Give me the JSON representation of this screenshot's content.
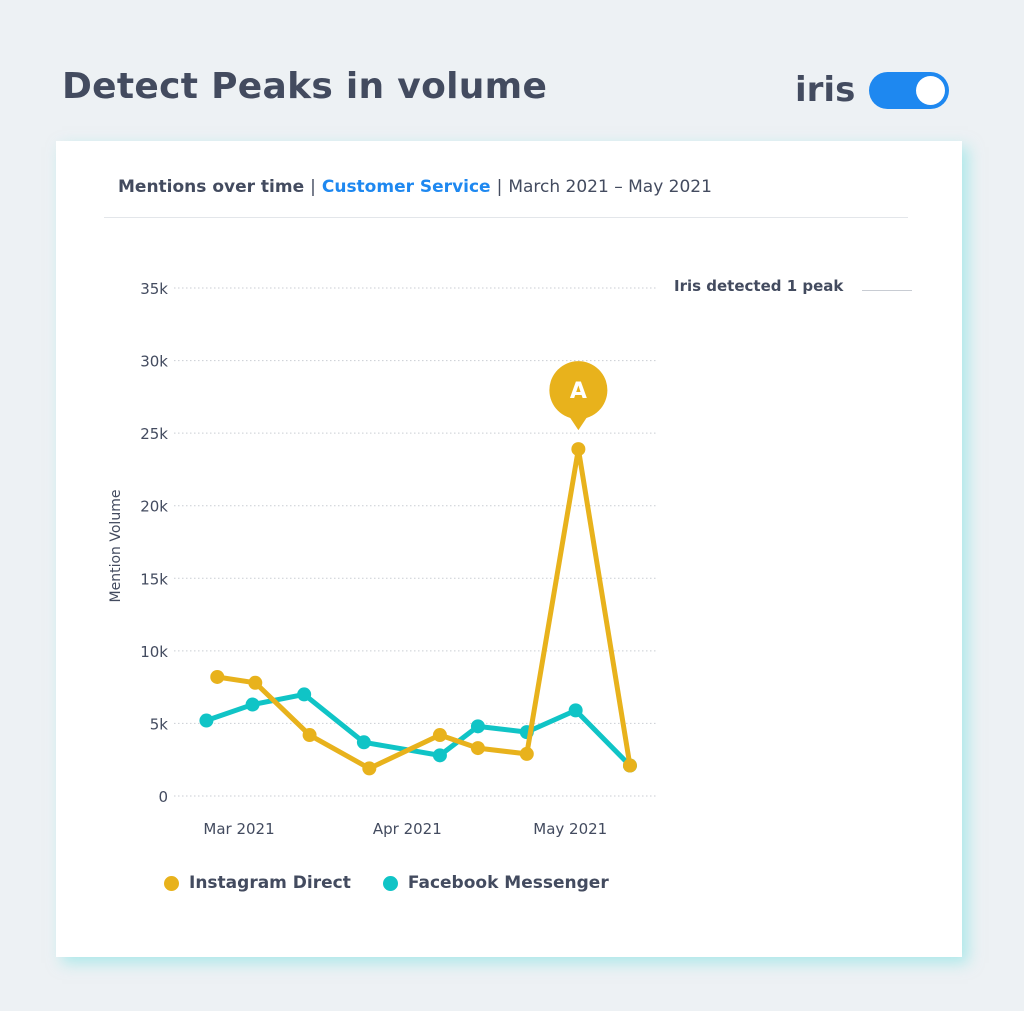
{
  "header": {
    "title": "Detect Peaks in volume",
    "brand": "iris",
    "toggle_on": true
  },
  "card": {
    "metric": "Mentions over time",
    "topic": "Customer Service",
    "range": "March 2021 – May 2021",
    "peak_note": "Iris detected 1 peak"
  },
  "colors": {
    "instagram": "#e8b21c",
    "facebook": "#10c4c6",
    "accent": "#1e88f0"
  },
  "chart_data": {
    "type": "line",
    "ylabel": "Mention Volume",
    "ylim": [
      0,
      35000
    ],
    "yticks": [
      {
        "v": 0,
        "label": "0"
      },
      {
        "v": 5000,
        "label": "5k"
      },
      {
        "v": 10000,
        "label": "10k"
      },
      {
        "v": 15000,
        "label": "15k"
      },
      {
        "v": 20000,
        "label": "20k"
      },
      {
        "v": 25000,
        "label": "25k"
      },
      {
        "v": 30000,
        "label": "30k"
      },
      {
        "v": 35000,
        "label": "35k"
      }
    ],
    "x_unit": "days since 2021-03-01",
    "xticks": [
      {
        "v": 0,
        "label": "Mar 2021"
      },
      {
        "v": 31,
        "label": "Apr 2021"
      },
      {
        "v": 61,
        "label": "May 2021"
      }
    ],
    "series": [
      {
        "name": "Instagram Direct",
        "color": "#e8b21c",
        "x": [
          -4,
          3,
          13,
          24,
          37,
          44,
          53,
          62.5,
          72
        ],
        "y": [
          8200,
          7800,
          4200,
          1900,
          4200,
          3300,
          2900,
          23900,
          2100
        ]
      },
      {
        "name": "Facebook Messenger",
        "color": "#10c4c6",
        "x": [
          -6,
          2.5,
          12,
          23,
          37,
          44,
          53,
          62,
          72
        ],
        "y": [
          5200,
          6300,
          7000,
          3700,
          2800,
          4800,
          4400,
          5900,
          2100
        ]
      }
    ],
    "annotations": [
      {
        "label": "A",
        "series": "Instagram Direct",
        "x": 62.5,
        "y": 23900
      }
    ]
  }
}
